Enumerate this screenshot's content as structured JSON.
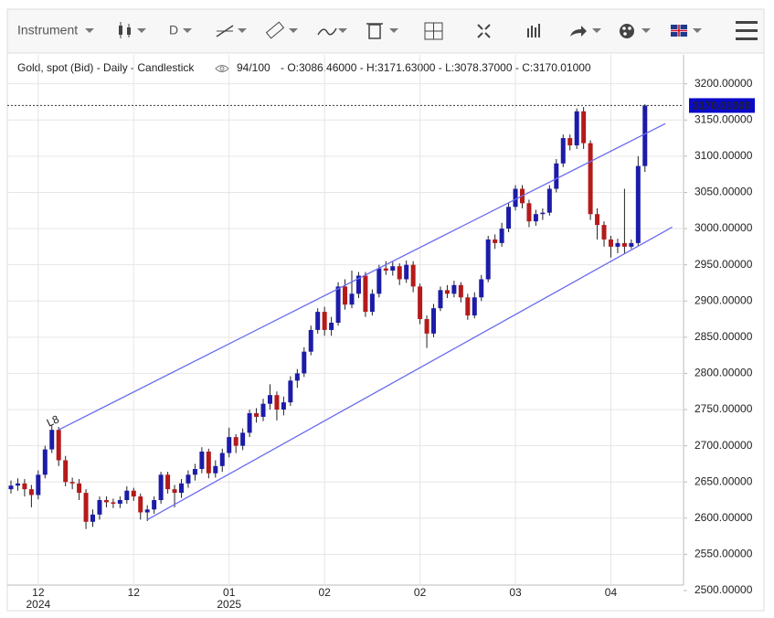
{
  "toolbar": {
    "instrument": "Instrument",
    "period": "D"
  },
  "chart_data": {
    "type": "candlestick",
    "title": "Gold, spot (Bid) - Daily - Candlestick",
    "count": "94/100",
    "ohlc_text": "- O:3086.46000 - H:3171.63000 - L:3078.37000 - C:3170.01000",
    "up_color": "#1c1ca8",
    "down_color": "#b51a1a",
    "line_color": "#6b6bf0",
    "grid": true,
    "categories": [
      null,
      null,
      null,
      null,
      "12",
      null,
      null,
      null,
      null,
      null,
      null,
      null,
      null,
      null,
      null,
      null,
      null,
      null,
      "12",
      null,
      null,
      null,
      null,
      null,
      null,
      null,
      null,
      null,
      null,
      null,
      null,
      null,
      "01",
      null,
      null,
      null,
      null,
      null,
      null,
      null,
      null,
      null,
      null,
      null,
      null,
      null,
      "02",
      null,
      null,
      null,
      null,
      null,
      null,
      null,
      null,
      null,
      null,
      null,
      null,
      null,
      "02",
      null,
      null,
      null,
      null,
      null,
      null,
      null,
      null,
      null,
      null,
      null,
      null,
      null,
      "03",
      null,
      null,
      null,
      null,
      null,
      null,
      null,
      null,
      null,
      null,
      null,
      null,
      null,
      "04",
      null,
      null,
      null,
      null,
      null
    ],
    "years": [
      null,
      null,
      null,
      null,
      "2024",
      null,
      null,
      null,
      null,
      null,
      null,
      null,
      null,
      null,
      null,
      null,
      null,
      null,
      null,
      null,
      null,
      null,
      null,
      null,
      null,
      null,
      null,
      null,
      null,
      null,
      null,
      null,
      "2025",
      null,
      null,
      null,
      null,
      null,
      null,
      null,
      null,
      null,
      null,
      null,
      null,
      null,
      null,
      null,
      null,
      null,
      null,
      null,
      null,
      null,
      null,
      null,
      null,
      null,
      null,
      null,
      null,
      null,
      null,
      null,
      null,
      null,
      null,
      null,
      null,
      null,
      null,
      null,
      null,
      null,
      null,
      null,
      null,
      null,
      null,
      null,
      null,
      null,
      null,
      null,
      null,
      null,
      null,
      null,
      null,
      null,
      null,
      null,
      null,
      null
    ],
    "open": [
      2640,
      2645,
      2648,
      2640,
      2632,
      2660,
      2695,
      2722,
      2680,
      2650,
      2648,
      2635,
      2595,
      2605,
      2625,
      2622,
      2620,
      2625,
      2638,
      2630,
      2608,
      2612,
      2625,
      2660,
      2640,
      2635,
      2648,
      2660,
      2668,
      2692,
      2662,
      2672,
      2690,
      2712,
      2700,
      2718,
      2745,
      2740,
      2758,
      2770,
      2750,
      2760,
      2790,
      2800,
      2830,
      2860,
      2885,
      2860,
      2870,
      2920,
      2895,
      2910,
      2935,
      2885,
      2910,
      2945,
      2942,
      2948,
      2930,
      2950,
      2920,
      2875,
      2855,
      2890,
      2915,
      2910,
      2922,
      2905,
      2880,
      2905,
      2930,
      2985,
      2980,
      3000,
      3030,
      3055,
      3035,
      3010,
      3020,
      3022,
      3055,
      3090,
      3125,
      3115,
      3162,
      3118,
      3020,
      3005,
      2985,
      2975,
      2980,
      2975,
      2980,
      3086.46
    ],
    "high": [
      2652,
      2655,
      2654,
      2646,
      2666,
      2700,
      2728,
      2726,
      2686,
      2656,
      2654,
      2640,
      2612,
      2630,
      2630,
      2627,
      2630,
      2644,
      2642,
      2634,
      2618,
      2630,
      2664,
      2664,
      2646,
      2654,
      2666,
      2675,
      2698,
      2696,
      2680,
      2696,
      2725,
      2716,
      2724,
      2750,
      2752,
      2765,
      2785,
      2775,
      2768,
      2796,
      2806,
      2836,
      2866,
      2890,
      2892,
      2878,
      2926,
      2930,
      2942,
      2940,
      2940,
      2916,
      2950,
      2955,
      2954,
      2952,
      2956,
      2955,
      2924,
      2880,
      2896,
      2920,
      2922,
      2928,
      2926,
      2910,
      2912,
      2936,
      2990,
      2992,
      3008,
      3036,
      3060,
      3060,
      3040,
      3026,
      3028,
      3060,
      3096,
      3130,
      3130,
      3166,
      3168,
      3122,
      3028,
      3010,
      2990,
      2986,
      3055,
      2985,
      3100,
      3171.63
    ],
    "low": [
      2634,
      2638,
      2630,
      2615,
      2626,
      2655,
      2690,
      2672,
      2644,
      2640,
      2625,
      2585,
      2588,
      2598,
      2615,
      2614,
      2614,
      2620,
      2624,
      2598,
      2596,
      2606,
      2620,
      2634,
      2615,
      2628,
      2642,
      2652,
      2662,
      2655,
      2656,
      2664,
      2684,
      2690,
      2694,
      2712,
      2732,
      2734,
      2750,
      2735,
      2742,
      2755,
      2780,
      2795,
      2825,
      2855,
      2852,
      2852,
      2866,
      2888,
      2890,
      2904,
      2878,
      2880,
      2905,
      2936,
      2935,
      2922,
      2925,
      2912,
      2868,
      2835,
      2850,
      2886,
      2904,
      2905,
      2898,
      2874,
      2876,
      2900,
      2926,
      2972,
      2975,
      2995,
      3025,
      3028,
      3002,
      3004,
      3012,
      3018,
      3050,
      3085,
      3108,
      3110,
      3110,
      3012,
      2985,
      2975,
      2960,
      2966,
      2965,
      2972,
      2976,
      3078.37
    ],
    "close": [
      2645,
      2648,
      2640,
      2632,
      2660,
      2695,
      2722,
      2680,
      2650,
      2648,
      2635,
      2595,
      2605,
      2625,
      2622,
      2620,
      2625,
      2638,
      2630,
      2608,
      2612,
      2625,
      2660,
      2640,
      2635,
      2648,
      2660,
      2668,
      2692,
      2662,
      2672,
      2690,
      2712,
      2700,
      2718,
      2745,
      2740,
      2758,
      2770,
      2750,
      2760,
      2790,
      2800,
      2830,
      2860,
      2885,
      2860,
      2870,
      2920,
      2895,
      2910,
      2935,
      2885,
      2910,
      2945,
      2942,
      2948,
      2930,
      2950,
      2920,
      2875,
      2855,
      2890,
      2915,
      2910,
      2922,
      2905,
      2880,
      2905,
      2930,
      2985,
      2980,
      3000,
      3030,
      3055,
      3035,
      3010,
      3020,
      3022,
      3055,
      3090,
      3125,
      3115,
      3162,
      3118,
      3020,
      3005,
      2985,
      2975,
      2980,
      2975,
      2980,
      3086.46,
      3170.01
    ],
    "last_label": "3170.01000",
    "trendlines": [
      {
        "label": "L8",
        "start": [
          7,
          2722
        ],
        "end": [
          96,
          3145
        ]
      },
      {
        "start": [
          20,
          2598
        ],
        "end": [
          97,
          3002
        ]
      }
    ],
    "ylim": [
      2500,
      3240
    ],
    "yticks": [
      {
        "value": 2500,
        "label": "2500.00000"
      },
      {
        "value": 2550,
        "label": "2550.00000"
      },
      {
        "value": 2600,
        "label": "2600.00000"
      },
      {
        "value": 2650,
        "label": "2650.00000"
      },
      {
        "value": 2700,
        "label": "2700.00000"
      },
      {
        "value": 2750,
        "label": "2750.00000"
      },
      {
        "value": 2800,
        "label": "2800.00000"
      },
      {
        "value": 2850,
        "label": "2850.00000"
      },
      {
        "value": 2900,
        "label": "2900.00000"
      },
      {
        "value": 2950,
        "label": "2950.00000"
      },
      {
        "value": 3000,
        "label": "3000.00000"
      },
      {
        "value": 3050,
        "label": "3050.00000"
      },
      {
        "value": 3100,
        "label": "3100.00000"
      },
      {
        "value": 3150,
        "label": "3150.00000"
      },
      {
        "value": 3200,
        "label": "3200.00000"
      }
    ]
  }
}
